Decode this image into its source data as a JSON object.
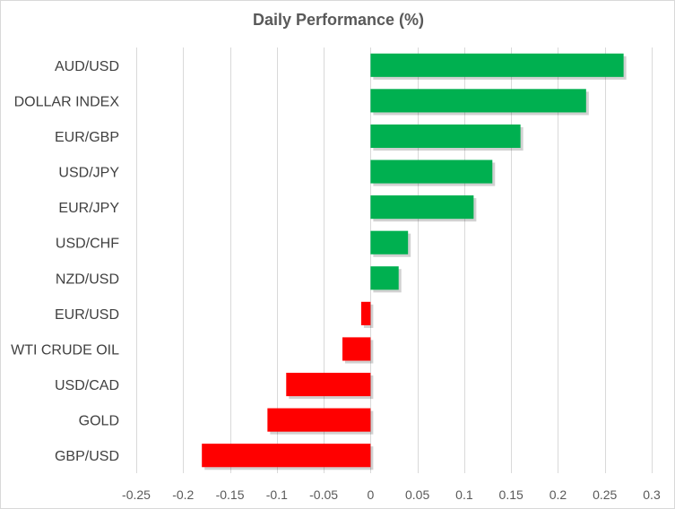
{
  "chart_data": {
    "type": "bar",
    "orientation": "horizontal",
    "title": "Daily Performance  (%)",
    "categories": [
      "AUD/USD",
      "DOLLAR INDEX",
      "EUR/GBP",
      "USD/JPY",
      "EUR/JPY",
      "USD/CHF",
      "NZD/USD",
      "EUR/USD",
      "WTI CRUDE OIL",
      "USD/CAD",
      "GOLD",
      "GBP/USD"
    ],
    "values": [
      0.27,
      0.23,
      0.16,
      0.13,
      0.11,
      0.04,
      0.03,
      -0.01,
      -0.03,
      -0.09,
      -0.11,
      -0.18
    ],
    "xlim": [
      -0.25,
      0.3
    ],
    "xticks": [
      -0.25,
      -0.2,
      -0.15,
      -0.1,
      -0.05,
      0,
      0.05,
      0.1,
      0.15,
      0.2,
      0.25,
      0.3
    ],
    "xtick_labels": [
      "-0.25",
      "-0.2",
      "-0.15",
      "-0.1",
      "-0.05",
      "0",
      "0.05",
      "0.1",
      "0.15",
      "0.2",
      "0.25",
      "0.3"
    ],
    "grid": true,
    "colors": {
      "positive": "#00B050",
      "negative": "#FF0000",
      "grid": "#d9d9d9"
    }
  }
}
